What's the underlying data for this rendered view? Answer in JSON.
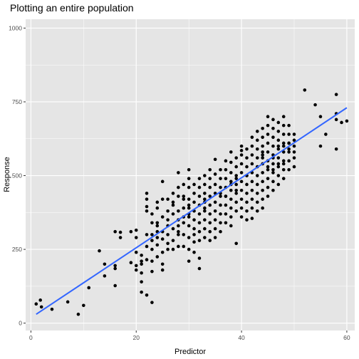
{
  "chart_data": {
    "type": "scatter",
    "title": "Plotting an entire population",
    "xlabel": "Predictor",
    "ylabel": "Response",
    "xlim": [
      -1,
      61.5
    ],
    "ylim": [
      -25,
      1030
    ],
    "x_ticks": [
      0,
      20,
      40,
      60
    ],
    "x_tick_labels": [
      "0",
      "20",
      "40",
      "60"
    ],
    "y_ticks": [
      0,
      250,
      500,
      750,
      1000
    ],
    "y_tick_labels": [
      "0",
      "250",
      "500",
      "750",
      "1000"
    ],
    "grid": true,
    "panel_background": "#e5e5e5",
    "grid_color": "#ffffff",
    "point_color": "#000000",
    "trend_color": "#3366ff",
    "trend_line": {
      "x": [
        1,
        60
      ],
      "y": [
        30,
        730
      ]
    },
    "points": [
      [
        1,
        65
      ],
      [
        1.8,
        78
      ],
      [
        2,
        55
      ],
      [
        4,
        47
      ],
      [
        7,
        72
      ],
      [
        9,
        30
      ],
      [
        10,
        60
      ],
      [
        11,
        120
      ],
      [
        13,
        245
      ],
      [
        14,
        200
      ],
      [
        14,
        160
      ],
      [
        16,
        195
      ],
      [
        16,
        185
      ],
      [
        16,
        310
      ],
      [
        16,
        127
      ],
      [
        17,
        308
      ],
      [
        17,
        290
      ],
      [
        19,
        310
      ],
      [
        19,
        205
      ],
      [
        20,
        240
      ],
      [
        20,
        195
      ],
      [
        20,
        180
      ],
      [
        20,
        315
      ],
      [
        20,
        290
      ],
      [
        21,
        230
      ],
      [
        21,
        200
      ],
      [
        21,
        210
      ],
      [
        21,
        170
      ],
      [
        21,
        140
      ],
      [
        21,
        105
      ],
      [
        22,
        95
      ],
      [
        22,
        260
      ],
      [
        22,
        380
      ],
      [
        22,
        420
      ],
      [
        22,
        395
      ],
      [
        22,
        440
      ],
      [
        22,
        300
      ],
      [
        22,
        215
      ],
      [
        23,
        70
      ],
      [
        23,
        175
      ],
      [
        23,
        210
      ],
      [
        23,
        250
      ],
      [
        23,
        280
      ],
      [
        23,
        340
      ],
      [
        23,
        370
      ],
      [
        23,
        300
      ],
      [
        24,
        330
      ],
      [
        24,
        310
      ],
      [
        24,
        290
      ],
      [
        24,
        265
      ],
      [
        24,
        340
      ],
      [
        24,
        390
      ],
      [
        24,
        410
      ],
      [
        24,
        225
      ],
      [
        25,
        480
      ],
      [
        25,
        420
      ],
      [
        25,
        360
      ],
      [
        25,
        310
      ],
      [
        25,
        285
      ],
      [
        25,
        240
      ],
      [
        25,
        200
      ],
      [
        25,
        180
      ],
      [
        26,
        350
      ],
      [
        26,
        330
      ],
      [
        26,
        300
      ],
      [
        26,
        270
      ],
      [
        26,
        380
      ],
      [
        26,
        250
      ],
      [
        26,
        420
      ],
      [
        27,
        440
      ],
      [
        27,
        410
      ],
      [
        27,
        320
      ],
      [
        27,
        280
      ],
      [
        27,
        250
      ],
      [
        27,
        370
      ],
      [
        27,
        400
      ],
      [
        28,
        510
      ],
      [
        28,
        460
      ],
      [
        28,
        430
      ],
      [
        28,
        380
      ],
      [
        28,
        350
      ],
      [
        28,
        330
      ],
      [
        28,
        310
      ],
      [
        28,
        300
      ],
      [
        28,
        260
      ],
      [
        29,
        470
      ],
      [
        29,
        430
      ],
      [
        29,
        390
      ],
      [
        29,
        360
      ],
      [
        29,
        340
      ],
      [
        29,
        300
      ],
      [
        29,
        260
      ],
      [
        29,
        420
      ],
      [
        30,
        520
      ],
      [
        30,
        490
      ],
      [
        30,
        460
      ],
      [
        30,
        420
      ],
      [
        30,
        390
      ],
      [
        30,
        360
      ],
      [
        30,
        330
      ],
      [
        30,
        290
      ],
      [
        30,
        250
      ],
      [
        30,
        210
      ],
      [
        30,
        400
      ],
      [
        30,
        370
      ],
      [
        31,
        470
      ],
      [
        31,
        440
      ],
      [
        31,
        410
      ],
      [
        31,
        380
      ],
      [
        31,
        350
      ],
      [
        31,
        320
      ],
      [
        31,
        300
      ],
      [
        31,
        275
      ],
      [
        31,
        240
      ],
      [
        32,
        490
      ],
      [
        32,
        460
      ],
      [
        32,
        430
      ],
      [
        32,
        400
      ],
      [
        32,
        370
      ],
      [
        32,
        340
      ],
      [
        32,
        310
      ],
      [
        32,
        280
      ],
      [
        32,
        185
      ],
      [
        32,
        220
      ],
      [
        33,
        500
      ],
      [
        33,
        470
      ],
      [
        33,
        440
      ],
      [
        33,
        410
      ],
      [
        33,
        380
      ],
      [
        33,
        350
      ],
      [
        33,
        320
      ],
      [
        33,
        290
      ],
      [
        33,
        420
      ],
      [
        33,
        390
      ],
      [
        34,
        520
      ],
      [
        34,
        490
      ],
      [
        34,
        460
      ],
      [
        34,
        430
      ],
      [
        34,
        400
      ],
      [
        34,
        370
      ],
      [
        34,
        340
      ],
      [
        34,
        310
      ],
      [
        34,
        280
      ],
      [
        35,
        555
      ],
      [
        35,
        505
      ],
      [
        35,
        470
      ],
      [
        35,
        440
      ],
      [
        35,
        410
      ],
      [
        35,
        380
      ],
      [
        35,
        350
      ],
      [
        35,
        320
      ],
      [
        35,
        290
      ],
      [
        36,
        520
      ],
      [
        36,
        490
      ],
      [
        36,
        460
      ],
      [
        36,
        430
      ],
      [
        36,
        400
      ],
      [
        36,
        370
      ],
      [
        36,
        340
      ],
      [
        36,
        310
      ],
      [
        36,
        440
      ],
      [
        37,
        550
      ],
      [
        37,
        520
      ],
      [
        37,
        490
      ],
      [
        37,
        460
      ],
      [
        37,
        430
      ],
      [
        37,
        400
      ],
      [
        37,
        370
      ],
      [
        37,
        340
      ],
      [
        37,
        430
      ],
      [
        38,
        580
      ],
      [
        38,
        545
      ],
      [
        38,
        510
      ],
      [
        38,
        480
      ],
      [
        38,
        450
      ],
      [
        38,
        420
      ],
      [
        38,
        390
      ],
      [
        38,
        360
      ],
      [
        38,
        330
      ],
      [
        38,
        470
      ],
      [
        39,
        560
      ],
      [
        39,
        530
      ],
      [
        39,
        500
      ],
      [
        39,
        470
      ],
      [
        39,
        440
      ],
      [
        39,
        410
      ],
      [
        39,
        380
      ],
      [
        39,
        270
      ],
      [
        39,
        450
      ],
      [
        39,
        490
      ],
      [
        40,
        600
      ],
      [
        40,
        570
      ],
      [
        40,
        540
      ],
      [
        40,
        510
      ],
      [
        40,
        480
      ],
      [
        40,
        450
      ],
      [
        40,
        420
      ],
      [
        40,
        390
      ],
      [
        40,
        360
      ],
      [
        40,
        585
      ],
      [
        41,
        590
      ],
      [
        41,
        560
      ],
      [
        41,
        530
      ],
      [
        41,
        500
      ],
      [
        41,
        470
      ],
      [
        41,
        440
      ],
      [
        41,
        410
      ],
      [
        41,
        380
      ],
      [
        41,
        350
      ],
      [
        41,
        500
      ],
      [
        42,
        630
      ],
      [
        42,
        600
      ],
      [
        42,
        570
      ],
      [
        42,
        540
      ],
      [
        42,
        510
      ],
      [
        42,
        480
      ],
      [
        42,
        450
      ],
      [
        42,
        420
      ],
      [
        42,
        390
      ],
      [
        42,
        355
      ],
      [
        43,
        650
      ],
      [
        43,
        620
      ],
      [
        43,
        590
      ],
      [
        43,
        560
      ],
      [
        43,
        530
      ],
      [
        43,
        500
      ],
      [
        43,
        470
      ],
      [
        43,
        440
      ],
      [
        43,
        410
      ],
      [
        43,
        380
      ],
      [
        44,
        660
      ],
      [
        44,
        630
      ],
      [
        44,
        600
      ],
      [
        44,
        570
      ],
      [
        44,
        540
      ],
      [
        44,
        510
      ],
      [
        44,
        480
      ],
      [
        44,
        450
      ],
      [
        44,
        420
      ],
      [
        44,
        390
      ],
      [
        44,
        560
      ],
      [
        44,
        580
      ],
      [
        45,
        700
      ],
      [
        45,
        670
      ],
      [
        45,
        640
      ],
      [
        45,
        610
      ],
      [
        45,
        580
      ],
      [
        45,
        550
      ],
      [
        45,
        520
      ],
      [
        45,
        490
      ],
      [
        45,
        460
      ],
      [
        45,
        430
      ],
      [
        45,
        530
      ],
      [
        46,
        690
      ],
      [
        46,
        660
      ],
      [
        46,
        630
      ],
      [
        46,
        600
      ],
      [
        46,
        570
      ],
      [
        46,
        540
      ],
      [
        46,
        510
      ],
      [
        46,
        480
      ],
      [
        46,
        450
      ],
      [
        46,
        520
      ],
      [
        46,
        560
      ],
      [
        47,
        680
      ],
      [
        47,
        650
      ],
      [
        47,
        620
      ],
      [
        47,
        590
      ],
      [
        47,
        560
      ],
      [
        47,
        530
      ],
      [
        47,
        500
      ],
      [
        47,
        470
      ],
      [
        47,
        540
      ],
      [
        47,
        600
      ],
      [
        48,
        700
      ],
      [
        48,
        670
      ],
      [
        48,
        640
      ],
      [
        48,
        610
      ],
      [
        48,
        580
      ],
      [
        48,
        550
      ],
      [
        48,
        520
      ],
      [
        48,
        490
      ],
      [
        48,
        540
      ],
      [
        48,
        600
      ],
      [
        49,
        670
      ],
      [
        49,
        640
      ],
      [
        49,
        610
      ],
      [
        49,
        580
      ],
      [
        49,
        550
      ],
      [
        49,
        520
      ],
      [
        49,
        610
      ],
      [
        49,
        590
      ],
      [
        50,
        640
      ],
      [
        50,
        600
      ],
      [
        50,
        560
      ],
      [
        50,
        530
      ],
      [
        50,
        580
      ],
      [
        50,
        620
      ],
      [
        52,
        790
      ],
      [
        54,
        740
      ],
      [
        55,
        600
      ],
      [
        55,
        700
      ],
      [
        56,
        640
      ],
      [
        58,
        775
      ],
      [
        58,
        710
      ],
      [
        58,
        590
      ],
      [
        58,
        690
      ],
      [
        59,
        680
      ],
      [
        60,
        685
      ]
    ]
  }
}
